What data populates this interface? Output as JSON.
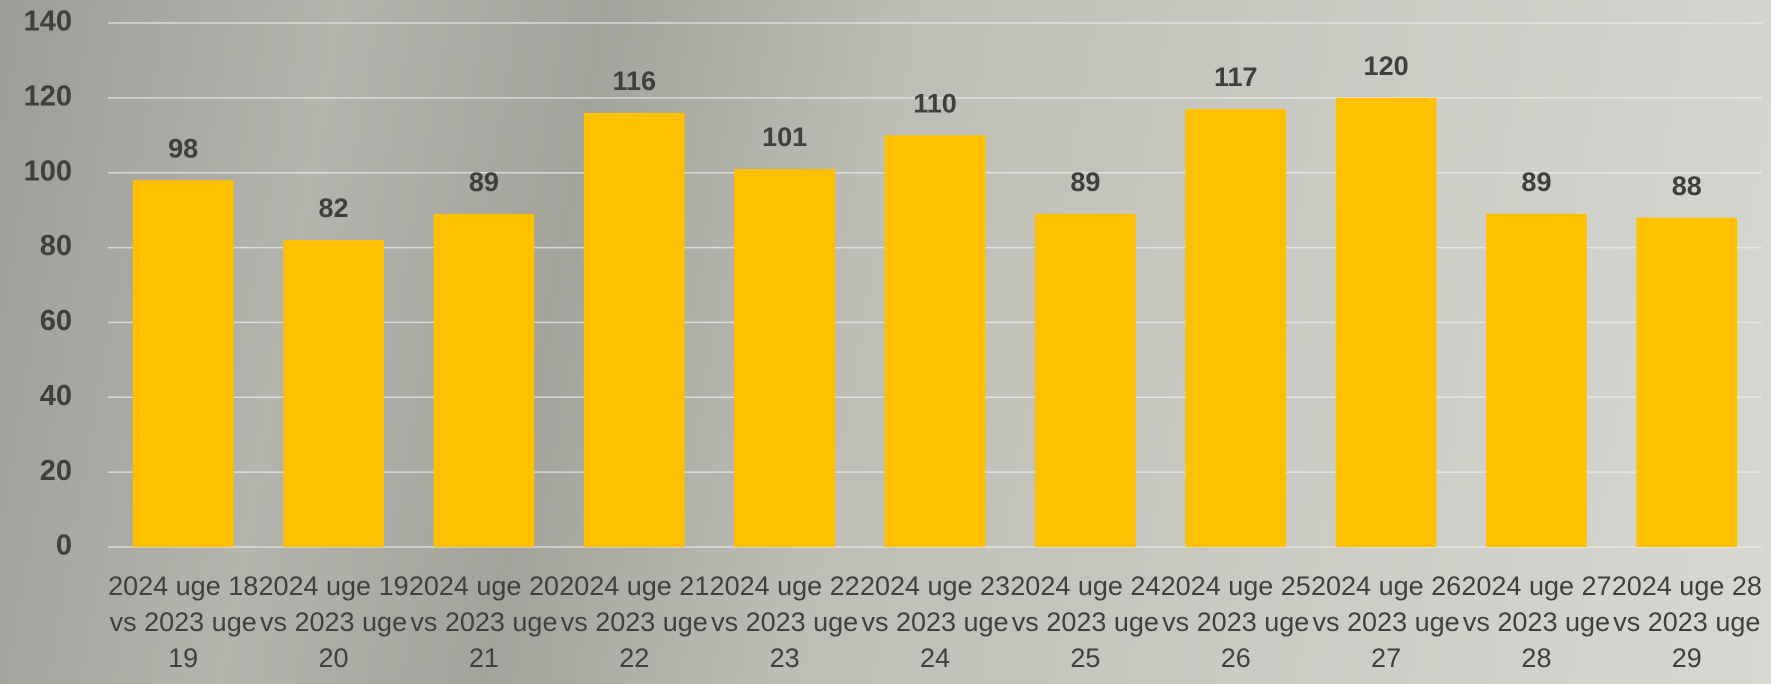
{
  "chart_data": {
    "type": "bar",
    "categories": [
      "2024 uge 18 vs 2023 uge 19",
      "2024 uge 19 vs 2023 uge 20",
      "2024 uge 20 vs 2023 uge 21",
      "2024 uge 21 vs 2023 uge 22",
      "2024 uge 22 vs 2023 uge 23",
      "2024 uge 23 vs 2023 uge 24",
      "2024 uge 24 vs 2023 uge 25",
      "2024 uge 25 vs 2023 uge 26",
      "2024 uge 26 vs 2023 uge 27",
      "2024 uge 27 vs 2023 uge 28",
      "2024 uge 28 vs 2023 uge 29"
    ],
    "values": [
      98,
      82,
      89,
      116,
      101,
      110,
      89,
      117,
      120,
      89,
      88
    ],
    "color": "#ffc000",
    "ylim": [
      0,
      140
    ],
    "yticks": [
      0,
      20,
      40,
      60,
      80,
      100,
      120,
      140
    ],
    "grid": true
  }
}
